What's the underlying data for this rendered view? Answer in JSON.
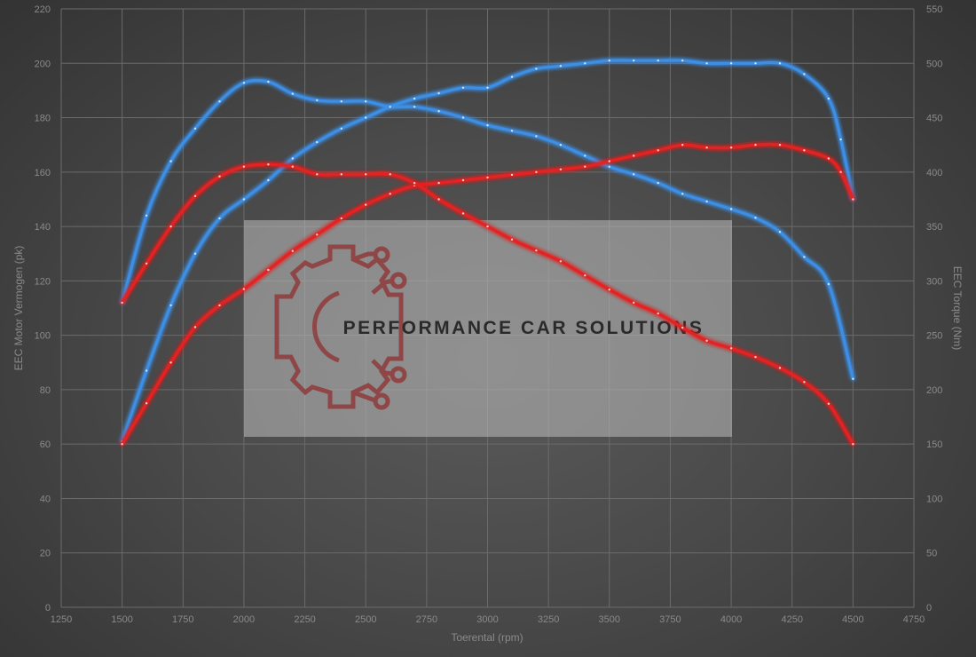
{
  "chart_data": {
    "type": "line",
    "xlabel": "Toerental (rpm)",
    "ylabel_left": "EEC Motor Vermogen (pk)",
    "ylabel_right": "EEC Torque (Nm)",
    "xlim": [
      1250,
      4750
    ],
    "ylim_left": [
      0,
      220
    ],
    "ylim_right": [
      0,
      550
    ],
    "x_ticks": [
      1250,
      1500,
      1750,
      2000,
      2250,
      2500,
      2750,
      3000,
      3250,
      3500,
      3750,
      4000,
      4250,
      4500,
      4750
    ],
    "y_ticks_left": [
      0,
      20,
      40,
      60,
      80,
      100,
      120,
      140,
      160,
      180,
      200,
      220
    ],
    "y_ticks_right": [
      0,
      50,
      100,
      150,
      200,
      250,
      300,
      350,
      400,
      450,
      500,
      550
    ],
    "grid": true,
    "legend": "none",
    "colors": {
      "tuned": "#3d8fe6",
      "stock": "#e52222"
    },
    "series": [
      {
        "key": "power_tuned",
        "axis": "left",
        "color": "#3d8fe6",
        "x": [
          1500,
          1600,
          1700,
          1800,
          1900,
          2000,
          2100,
          2200,
          2300,
          2400,
          2500,
          2600,
          2700,
          2800,
          2900,
          3000,
          3100,
          3200,
          3300,
          3400,
          3500,
          3600,
          3700,
          3800,
          3900,
          4000,
          4100,
          4200,
          4300,
          4400,
          4450,
          4500
        ],
        "y": [
          61,
          87,
          111,
          130,
          143,
          150,
          157,
          165,
          171,
          176,
          180,
          184,
          187,
          189,
          191,
          191,
          195,
          198,
          199,
          200,
          201,
          201,
          201,
          201,
          200,
          200,
          200,
          200,
          196,
          187,
          172,
          150
        ]
      },
      {
        "key": "torque_tuned",
        "axis": "right",
        "color": "#3d8fe6",
        "x": [
          1500,
          1600,
          1700,
          1800,
          1900,
          2000,
          2100,
          2200,
          2300,
          2400,
          2500,
          2600,
          2700,
          2800,
          2900,
          3000,
          3100,
          3200,
          3300,
          3400,
          3500,
          3600,
          3700,
          3800,
          3900,
          4000,
          4100,
          4200,
          4300,
          4400,
          4500
        ],
        "y": [
          280,
          360,
          410,
          440,
          465,
          482,
          483,
          472,
          466,
          465,
          465,
          460,
          460,
          456,
          450,
          443,
          438,
          433,
          425,
          415,
          405,
          398,
          390,
          380,
          373,
          366,
          358,
          345,
          322,
          297,
          210
        ]
      },
      {
        "key": "power_stock",
        "axis": "left",
        "color": "#e52222",
        "x": [
          1500,
          1600,
          1700,
          1800,
          1900,
          2000,
          2100,
          2200,
          2300,
          2400,
          2500,
          2600,
          2700,
          2800,
          2900,
          3000,
          3100,
          3200,
          3300,
          3400,
          3500,
          3600,
          3700,
          3800,
          3900,
          4000,
          4100,
          4200,
          4300,
          4400,
          4450,
          4500
        ],
        "y": [
          60,
          75,
          90,
          103,
          111,
          117,
          124,
          131,
          137,
          143,
          148,
          152,
          155,
          156,
          157,
          158,
          159,
          160,
          161,
          162,
          164,
          166,
          168,
          170,
          169,
          169,
          170,
          170,
          168,
          165,
          160,
          150
        ]
      },
      {
        "key": "torque_stock",
        "axis": "right",
        "color": "#e52222",
        "x": [
          1500,
          1600,
          1700,
          1800,
          1900,
          2000,
          2100,
          2200,
          2300,
          2400,
          2500,
          2600,
          2700,
          2800,
          2900,
          3000,
          3100,
          3200,
          3300,
          3400,
          3500,
          3600,
          3700,
          3800,
          3900,
          4000,
          4100,
          4200,
          4300,
          4400,
          4500
        ],
        "y": [
          280,
          316,
          350,
          378,
          396,
          405,
          407,
          405,
          398,
          398,
          398,
          398,
          390,
          375,
          362,
          350,
          338,
          328,
          318,
          305,
          292,
          280,
          270,
          257,
          245,
          238,
          230,
          220,
          207,
          187,
          150
        ]
      }
    ]
  },
  "watermark": {
    "text": "PERFORMANCE CAR SOLUTIONS",
    "logo": "gear-circuit-logo"
  }
}
